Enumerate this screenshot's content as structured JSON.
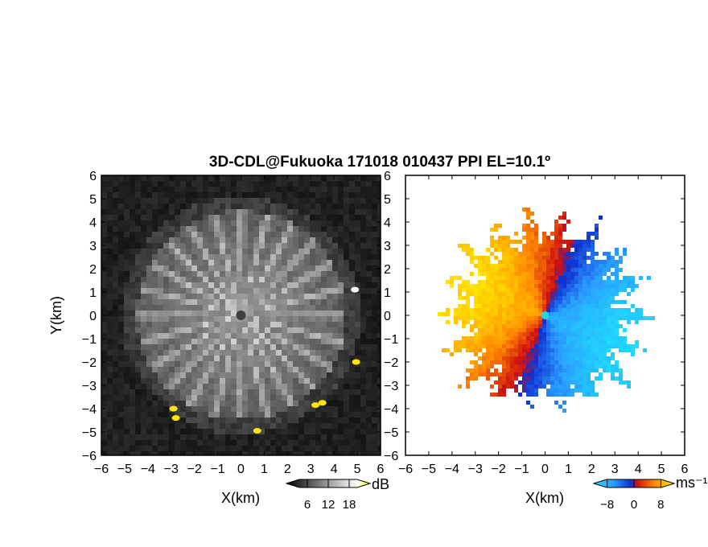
{
  "chart_data": {
    "title": "3D-CDL@Fukuoka 171018 010437 PPI EL=10.1º",
    "panels": [
      {
        "type": "heatmap",
        "quantity": "reflectivity",
        "xlabel": "X(km)",
        "ylabel": "Y(km)",
        "xlim": [
          -6,
          6
        ],
        "ylim": [
          -6,
          6
        ],
        "xticks": [
          "−6",
          "−5",
          "−4",
          "−3",
          "−2",
          "−1",
          "0",
          "1",
          "2",
          "3",
          "4",
          "5",
          "6"
        ],
        "yticks": [
          "6",
          "5",
          "4",
          "3",
          "2",
          "1",
          "0",
          "−1",
          "−2",
          "−3",
          "−4",
          "−5",
          "−6"
        ],
        "colorbar": {
          "label": "dB",
          "ticks": [
            "6",
            "12",
            "18"
          ],
          "range": [
            0,
            24
          ],
          "tick_values": [
            6,
            12,
            18
          ]
        },
        "echo_radius_km": 4.5,
        "bright_spots": [
          {
            "x": -2.9,
            "y": -4.0,
            "level": "high"
          },
          {
            "x": -2.8,
            "y": -4.4,
            "level": "high"
          },
          {
            "x": 3.2,
            "y": -3.85,
            "level": "high"
          },
          {
            "x": 3.5,
            "y": -3.75,
            "level": "high"
          },
          {
            "x": 0.7,
            "y": -4.95,
            "level": "high"
          },
          {
            "x": 4.95,
            "y": -2.0,
            "level": "high"
          },
          {
            "x": 4.9,
            "y": 1.1,
            "level": "medium"
          }
        ]
      },
      {
        "type": "heatmap",
        "quantity": "radial_velocity",
        "xlabel": "X(km)",
        "xlim": [
          -6,
          6
        ],
        "ylim": [
          -6,
          6
        ],
        "xticks": [
          "−6",
          "−5",
          "−4",
          "−3",
          "−2",
          "−1",
          "0",
          "1",
          "2",
          "3",
          "4",
          "5",
          "6"
        ],
        "yticks": [
          "6",
          "5",
          "4",
          "3",
          "2",
          "1",
          "0",
          "−1",
          "−2",
          "−3",
          "−4",
          "−5",
          "−6"
        ],
        "colorbar": {
          "label": "ms⁻¹",
          "ticks": [
            "−8",
            "0",
            "8"
          ],
          "range": [
            -12,
            12
          ],
          "tick_values": [
            -8,
            0,
            8
          ]
        },
        "flow_direction_deg": 110,
        "max_speed": 11
      }
    ]
  }
}
